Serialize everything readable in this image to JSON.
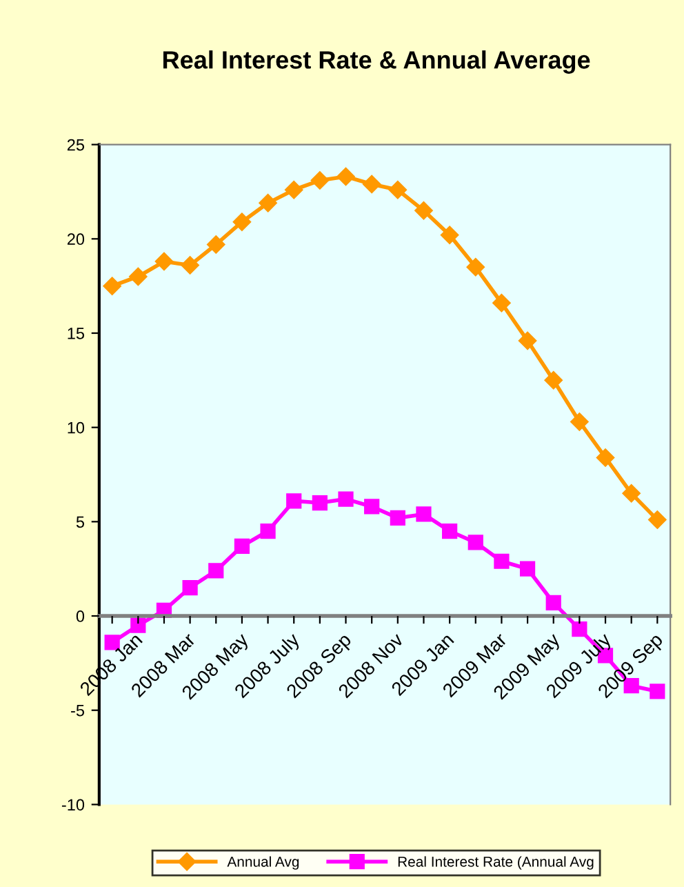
{
  "chart_data": {
    "type": "line",
    "title": "Real Interest Rate & Annual Average",
    "categories": [
      "2008 Jan",
      null,
      "2008 Mar",
      null,
      "2008 May",
      null,
      "2008 July",
      null,
      "2008 Sep",
      null,
      "2008 Nov",
      null,
      "2009 Jan",
      null,
      "2009 Mar",
      null,
      "2009 May",
      null,
      "2009 July",
      null,
      "2009 Sep",
      null
    ],
    "series": [
      {
        "name": "Annual Avg",
        "color": "#ff9900",
        "marker": "diamond",
        "values": [
          17.5,
          18.0,
          18.8,
          18.6,
          19.7,
          20.9,
          21.9,
          22.6,
          23.1,
          23.3,
          22.9,
          22.6,
          21.5,
          20.2,
          18.5,
          16.6,
          14.6,
          12.5,
          10.3,
          8.4,
          6.5,
          5.1
        ]
      },
      {
        "name": "Real Interest Rate (Annual Avg",
        "color": "#ff00ff",
        "marker": "square",
        "values": [
          -1.4,
          -0.5,
          0.3,
          1.5,
          2.4,
          3.7,
          4.5,
          6.1,
          6.0,
          6.2,
          5.8,
          5.2,
          5.4,
          4.5,
          3.9,
          2.9,
          2.5,
          0.7,
          -0.7,
          -2.1,
          -3.7,
          -4.0
        ]
      }
    ],
    "ylim": [
      -10,
      25
    ],
    "yticks": [
      -10,
      -5,
      0,
      5,
      10,
      15,
      20,
      25
    ],
    "grid": false,
    "legend": "bottom",
    "line_style": "solid"
  }
}
